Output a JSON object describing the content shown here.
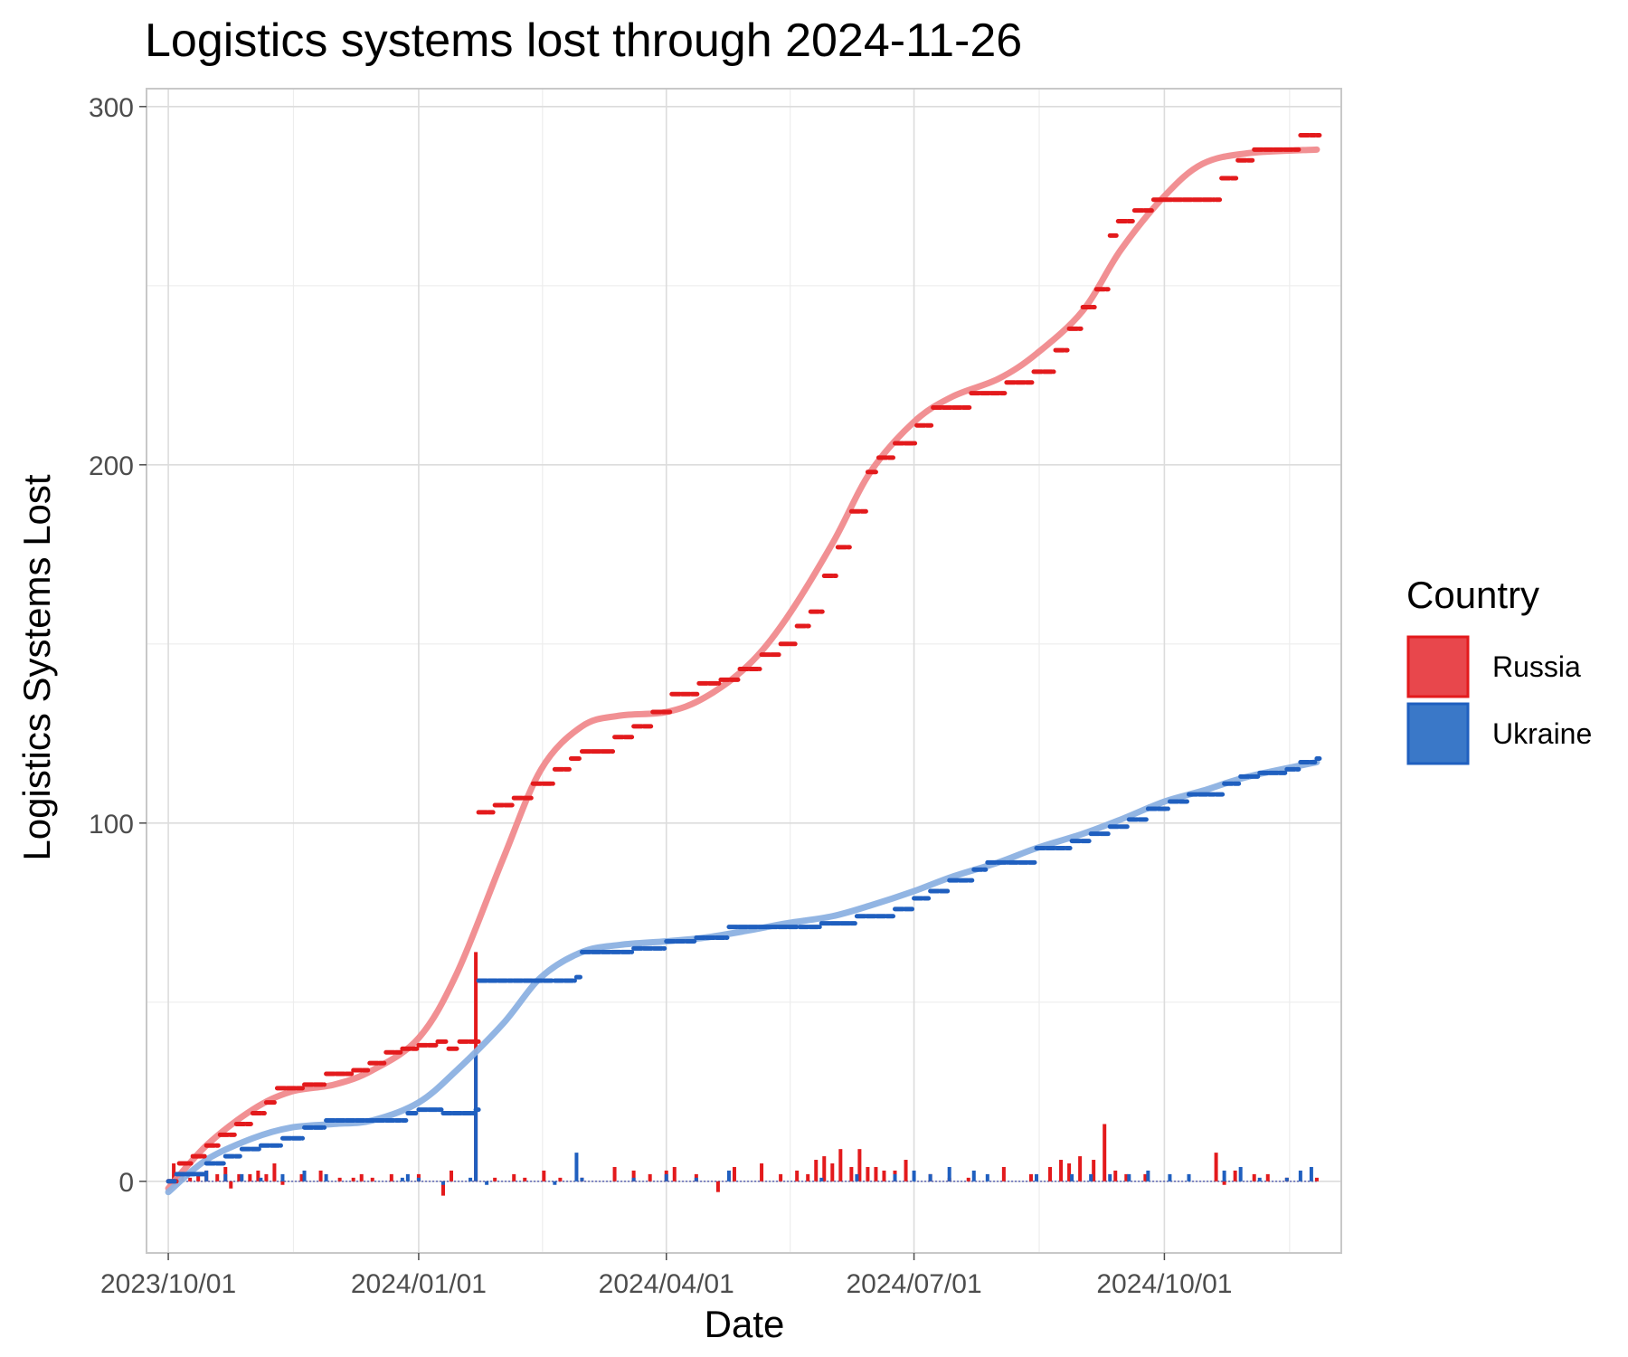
{
  "chart_data": {
    "type": "line",
    "title": "Logistics systems lost through 2024-11-26",
    "xlabel": "Date",
    "ylabel": "Logistics Systems Lost",
    "x_ticks": [
      "2023/10/01",
      "2024/01/01",
      "2024/04/01",
      "2024/07/01",
      "2024/10/01"
    ],
    "y_ticks": [
      0,
      100,
      200,
      300
    ],
    "xlim": [
      "2023-09-23",
      "2024-12-05"
    ],
    "ylim": [
      -20,
      305
    ],
    "grid": true,
    "legend": {
      "title": "Country",
      "position": "right"
    },
    "colors": {
      "Russia": "#e31a1c",
      "Ukraine": "#1f5fbf",
      "Russia_fill": "#e8474c",
      "Ukraine_fill": "#3a78c8",
      "Russia_smooth": "#f08a8d",
      "Ukraine_smooth": "#8cb1e2"
    },
    "series": [
      {
        "name": "Russia",
        "cumulative": [
          [
            "2023-10-01",
            0
          ],
          [
            "2023-10-05",
            5
          ],
          [
            "2023-10-10",
            7
          ],
          [
            "2023-10-15",
            10
          ],
          [
            "2023-10-20",
            13
          ],
          [
            "2023-10-26",
            16
          ],
          [
            "2023-11-01",
            19
          ],
          [
            "2023-11-06",
            22
          ],
          [
            "2023-11-10",
            26
          ],
          [
            "2023-11-20",
            27
          ],
          [
            "2023-11-28",
            30
          ],
          [
            "2023-12-08",
            31
          ],
          [
            "2023-12-14",
            33
          ],
          [
            "2023-12-20",
            36
          ],
          [
            "2023-12-26",
            37
          ],
          [
            "2024-01-01",
            38
          ],
          [
            "2024-01-08",
            39
          ],
          [
            "2024-01-12",
            37
          ],
          [
            "2024-01-16",
            39
          ],
          [
            "2024-01-22",
            39
          ],
          [
            "2024-01-23",
            103
          ],
          [
            "2024-01-29",
            105
          ],
          [
            "2024-02-05",
            107
          ],
          [
            "2024-02-12",
            111
          ],
          [
            "2024-02-20",
            115
          ],
          [
            "2024-02-26",
            118
          ],
          [
            "2024-03-01",
            120
          ],
          [
            "2024-03-13",
            124
          ],
          [
            "2024-03-20",
            127
          ],
          [
            "2024-03-27",
            131
          ],
          [
            "2024-04-03",
            136
          ],
          [
            "2024-04-13",
            139
          ],
          [
            "2024-04-21",
            140
          ],
          [
            "2024-04-28",
            143
          ],
          [
            "2024-05-06",
            147
          ],
          [
            "2024-05-13",
            150
          ],
          [
            "2024-05-19",
            155
          ],
          [
            "2024-05-24",
            159
          ],
          [
            "2024-05-29",
            169
          ],
          [
            "2024-06-03",
            177
          ],
          [
            "2024-06-08",
            187
          ],
          [
            "2024-06-14",
            198
          ],
          [
            "2024-06-18",
            202
          ],
          [
            "2024-06-24",
            206
          ],
          [
            "2024-07-02",
            211
          ],
          [
            "2024-07-08",
            216
          ],
          [
            "2024-07-22",
            220
          ],
          [
            "2024-08-04",
            223
          ],
          [
            "2024-08-14",
            226
          ],
          [
            "2024-08-22",
            232
          ],
          [
            "2024-08-27",
            238
          ],
          [
            "2024-09-01",
            244
          ],
          [
            "2024-09-06",
            249
          ],
          [
            "2024-09-11",
            264
          ],
          [
            "2024-09-14",
            268
          ],
          [
            "2024-09-20",
            271
          ],
          [
            "2024-09-27",
            274
          ],
          [
            "2024-10-20",
            274
          ],
          [
            "2024-10-22",
            280
          ],
          [
            "2024-10-28",
            285
          ],
          [
            "2024-11-03",
            288
          ],
          [
            "2024-11-14",
            288
          ],
          [
            "2024-11-20",
            292
          ],
          [
            "2024-11-26",
            292
          ]
        ],
        "smooth": [
          [
            "2023-10-01",
            -2
          ],
          [
            "2023-10-15",
            10
          ],
          [
            "2023-11-01",
            20
          ],
          [
            "2023-11-15",
            25
          ],
          [
            "2023-12-01",
            27
          ],
          [
            "2023-12-15",
            31
          ],
          [
            "2024-01-01",
            40
          ],
          [
            "2024-01-15",
            58
          ],
          [
            "2024-02-01",
            90
          ],
          [
            "2024-02-15",
            115
          ],
          [
            "2024-03-01",
            127
          ],
          [
            "2024-03-15",
            130
          ],
          [
            "2024-04-01",
            131
          ],
          [
            "2024-04-15",
            135
          ],
          [
            "2024-05-01",
            144
          ],
          [
            "2024-05-15",
            157
          ],
          [
            "2024-06-01",
            178
          ],
          [
            "2024-06-15",
            198
          ],
          [
            "2024-07-01",
            212
          ],
          [
            "2024-07-15",
            219
          ],
          [
            "2024-08-01",
            224
          ],
          [
            "2024-08-15",
            231
          ],
          [
            "2024-09-01",
            243
          ],
          [
            "2024-09-15",
            260
          ],
          [
            "2024-10-01",
            275
          ],
          [
            "2024-10-15",
            284
          ],
          [
            "2024-11-01",
            287
          ],
          [
            "2024-11-26",
            288
          ]
        ],
        "daily": [
          [
            "2023-10-03",
            5
          ],
          [
            "2023-10-06",
            2
          ],
          [
            "2023-10-09",
            1
          ],
          [
            "2023-10-12",
            2
          ],
          [
            "2023-10-15",
            3
          ],
          [
            "2023-10-19",
            2
          ],
          [
            "2023-10-22",
            4
          ],
          [
            "2023-10-24",
            -2
          ],
          [
            "2023-10-27",
            2
          ],
          [
            "2023-10-31",
            2
          ],
          [
            "2023-11-03",
            3
          ],
          [
            "2023-11-06",
            2
          ],
          [
            "2023-11-09",
            5
          ],
          [
            "2023-11-12",
            -1
          ],
          [
            "2023-11-19",
            2
          ],
          [
            "2023-11-26",
            3
          ],
          [
            "2023-12-03",
            1
          ],
          [
            "2023-12-08",
            1
          ],
          [
            "2023-12-11",
            2
          ],
          [
            "2023-12-15",
            1
          ],
          [
            "2023-12-22",
            2
          ],
          [
            "2024-01-01",
            2
          ],
          [
            "2024-01-10",
            -4
          ],
          [
            "2024-01-13",
            3
          ],
          [
            "2024-01-22",
            64
          ],
          [
            "2024-01-29",
            1
          ],
          [
            "2024-02-05",
            2
          ],
          [
            "2024-02-09",
            1
          ],
          [
            "2024-02-16",
            3
          ],
          [
            "2024-02-22",
            1
          ],
          [
            "2024-03-01",
            1
          ],
          [
            "2024-03-13",
            4
          ],
          [
            "2024-03-20",
            3
          ],
          [
            "2024-03-26",
            2
          ],
          [
            "2024-04-01",
            3
          ],
          [
            "2024-04-04",
            4
          ],
          [
            "2024-04-12",
            2
          ],
          [
            "2024-04-20",
            -3
          ],
          [
            "2024-04-26",
            4
          ],
          [
            "2024-05-06",
            5
          ],
          [
            "2024-05-13",
            2
          ],
          [
            "2024-05-19",
            3
          ],
          [
            "2024-05-23",
            2
          ],
          [
            "2024-05-26",
            6
          ],
          [
            "2024-05-29",
            7
          ],
          [
            "2024-06-01",
            5
          ],
          [
            "2024-06-04",
            9
          ],
          [
            "2024-06-08",
            4
          ],
          [
            "2024-06-11",
            9
          ],
          [
            "2024-06-14",
            4
          ],
          [
            "2024-06-17",
            4
          ],
          [
            "2024-06-20",
            3
          ],
          [
            "2024-06-24",
            3
          ],
          [
            "2024-06-28",
            6
          ],
          [
            "2024-07-07",
            2
          ],
          [
            "2024-07-14",
            1
          ],
          [
            "2024-07-21",
            1
          ],
          [
            "2024-08-03",
            4
          ],
          [
            "2024-08-13",
            2
          ],
          [
            "2024-08-20",
            4
          ],
          [
            "2024-08-24",
            6
          ],
          [
            "2024-08-27",
            5
          ],
          [
            "2024-08-31",
            7
          ],
          [
            "2024-09-05",
            6
          ],
          [
            "2024-09-09",
            16
          ],
          [
            "2024-09-13",
            3
          ],
          [
            "2024-09-17",
            2
          ],
          [
            "2024-09-24",
            2
          ],
          [
            "2024-10-20",
            8
          ],
          [
            "2024-10-23",
            -1
          ],
          [
            "2024-10-27",
            3
          ],
          [
            "2024-11-03",
            2
          ],
          [
            "2024-11-08",
            2
          ],
          [
            "2024-11-15",
            1
          ],
          [
            "2024-11-26",
            1
          ]
        ]
      },
      {
        "name": "Ukraine",
        "cumulative": [
          [
            "2023-10-01",
            0
          ],
          [
            "2023-10-04",
            2
          ],
          [
            "2023-10-15",
            5
          ],
          [
            "2023-10-22",
            7
          ],
          [
            "2023-10-28",
            9
          ],
          [
            "2023-11-04",
            10
          ],
          [
            "2023-11-12",
            12
          ],
          [
            "2023-11-20",
            15
          ],
          [
            "2023-11-28",
            17
          ],
          [
            "2023-12-26",
            17
          ],
          [
            "2023-12-28",
            19
          ],
          [
            "2024-01-01",
            20
          ],
          [
            "2024-01-10",
            19
          ],
          [
            "2024-01-22",
            20
          ],
          [
            "2024-01-23",
            56
          ],
          [
            "2024-02-05",
            56
          ],
          [
            "2024-02-20",
            56
          ],
          [
            "2024-02-28",
            57
          ],
          [
            "2024-03-01",
            64
          ],
          [
            "2024-03-20",
            65
          ],
          [
            "2024-04-01",
            67
          ],
          [
            "2024-04-12",
            68
          ],
          [
            "2024-04-24",
            71
          ],
          [
            "2024-05-20",
            71
          ],
          [
            "2024-05-28",
            72
          ],
          [
            "2024-06-10",
            74
          ],
          [
            "2024-06-24",
            76
          ],
          [
            "2024-07-01",
            79
          ],
          [
            "2024-07-07",
            81
          ],
          [
            "2024-07-14",
            84
          ],
          [
            "2024-07-23",
            87
          ],
          [
            "2024-07-28",
            89
          ],
          [
            "2024-08-05",
            89
          ],
          [
            "2024-08-15",
            93
          ],
          [
            "2024-08-28",
            95
          ],
          [
            "2024-09-04",
            97
          ],
          [
            "2024-09-11",
            99
          ],
          [
            "2024-09-18",
            101
          ],
          [
            "2024-09-25",
            104
          ],
          [
            "2024-10-03",
            106
          ],
          [
            "2024-10-10",
            108
          ],
          [
            "2024-10-20",
            108
          ],
          [
            "2024-10-23",
            111
          ],
          [
            "2024-10-29",
            113
          ],
          [
            "2024-11-05",
            114
          ],
          [
            "2024-11-15",
            115
          ],
          [
            "2024-11-20",
            117
          ],
          [
            "2024-11-26",
            118
          ]
        ],
        "smooth": [
          [
            "2023-10-01",
            -3
          ],
          [
            "2023-10-15",
            6
          ],
          [
            "2023-11-01",
            12
          ],
          [
            "2023-11-15",
            15
          ],
          [
            "2023-12-01",
            16
          ],
          [
            "2023-12-15",
            17
          ],
          [
            "2024-01-01",
            22
          ],
          [
            "2024-01-15",
            31
          ],
          [
            "2024-02-01",
            44
          ],
          [
            "2024-02-15",
            57
          ],
          [
            "2024-03-01",
            64
          ],
          [
            "2024-03-15",
            66
          ],
          [
            "2024-04-01",
            67
          ],
          [
            "2024-04-15",
            68
          ],
          [
            "2024-05-01",
            70
          ],
          [
            "2024-05-15",
            72
          ],
          [
            "2024-06-01",
            74
          ],
          [
            "2024-06-15",
            77
          ],
          [
            "2024-07-01",
            81
          ],
          [
            "2024-07-15",
            85
          ],
          [
            "2024-08-01",
            89
          ],
          [
            "2024-08-15",
            93
          ],
          [
            "2024-09-01",
            97
          ],
          [
            "2024-09-15",
            101
          ],
          [
            "2024-10-01",
            106
          ],
          [
            "2024-10-15",
            109
          ],
          [
            "2024-11-01",
            113
          ],
          [
            "2024-11-26",
            117
          ]
        ],
        "daily": [
          [
            "2023-10-04",
            2
          ],
          [
            "2023-10-15",
            3
          ],
          [
            "2023-10-22",
            2
          ],
          [
            "2023-10-28",
            2
          ],
          [
            "2023-11-04",
            1
          ],
          [
            "2023-11-12",
            2
          ],
          [
            "2023-11-20",
            3
          ],
          [
            "2023-11-28",
            2
          ],
          [
            "2023-12-26",
            1
          ],
          [
            "2023-12-28",
            2
          ],
          [
            "2024-01-01",
            1
          ],
          [
            "2024-01-10",
            -1
          ],
          [
            "2024-01-20",
            1
          ],
          [
            "2024-01-22",
            36
          ],
          [
            "2024-01-26",
            -1
          ],
          [
            "2024-02-20",
            -1
          ],
          [
            "2024-02-28",
            8
          ],
          [
            "2024-03-01",
            1
          ],
          [
            "2024-03-20",
            1
          ],
          [
            "2024-04-01",
            2
          ],
          [
            "2024-04-12",
            1
          ],
          [
            "2024-04-24",
            3
          ],
          [
            "2024-05-28",
            1
          ],
          [
            "2024-06-10",
            2
          ],
          [
            "2024-06-24",
            2
          ],
          [
            "2024-07-01",
            3
          ],
          [
            "2024-07-07",
            2
          ],
          [
            "2024-07-14",
            4
          ],
          [
            "2024-07-23",
            3
          ],
          [
            "2024-07-28",
            2
          ],
          [
            "2024-08-15",
            2
          ],
          [
            "2024-08-28",
            2
          ],
          [
            "2024-09-04",
            2
          ],
          [
            "2024-09-11",
            2
          ],
          [
            "2024-09-18",
            2
          ],
          [
            "2024-09-25",
            3
          ],
          [
            "2024-10-03",
            2
          ],
          [
            "2024-10-10",
            2
          ],
          [
            "2024-10-23",
            3
          ],
          [
            "2024-10-29",
            4
          ],
          [
            "2024-11-05",
            1
          ],
          [
            "2024-11-15",
            1
          ],
          [
            "2024-11-20",
            3
          ],
          [
            "2024-11-24",
            4
          ]
        ]
      }
    ]
  }
}
